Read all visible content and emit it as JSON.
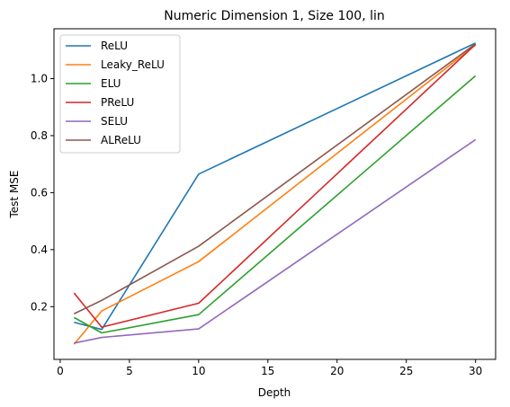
{
  "chart_data": {
    "type": "line",
    "title": "Numeric Dimension 1, Size 100, lin",
    "xlabel": "Depth",
    "ylabel": "Test MSE",
    "xlim": [
      -0.45,
      31.45
    ],
    "ylim": [
      0.015,
      1.175
    ],
    "x_ticks": [
      0,
      5,
      10,
      15,
      20,
      25,
      30
    ],
    "y_ticks": [
      0.2,
      0.4,
      0.6,
      0.8,
      1.0
    ],
    "y_tick_labels": [
      "0.2",
      "0.4",
      "0.6",
      "0.8",
      "1.0"
    ],
    "grid": false,
    "legend_position": "top-left",
    "x": [
      1,
      3,
      10,
      30
    ],
    "series": [
      {
        "name": "ReLU",
        "color": "#1f77b4",
        "values": [
          0.145,
          0.12,
          0.665,
          1.125
        ]
      },
      {
        "name": "Leaky_ReLU",
        "color": "#ff7f0e",
        "values": [
          0.068,
          0.185,
          0.358,
          1.118
        ]
      },
      {
        "name": "ELU",
        "color": "#2ca02c",
        "values": [
          0.162,
          0.108,
          0.172,
          1.01
        ]
      },
      {
        "name": "PReLU",
        "color": "#d62728",
        "values": [
          0.248,
          0.128,
          0.212,
          1.12
        ]
      },
      {
        "name": "SELU",
        "color": "#9467bd",
        "values": [
          0.072,
          0.092,
          0.122,
          0.786
        ]
      },
      {
        "name": "ALReLU",
        "color": "#8c564b",
        "values": [
          0.175,
          0.222,
          0.412,
          1.122
        ]
      }
    ]
  }
}
